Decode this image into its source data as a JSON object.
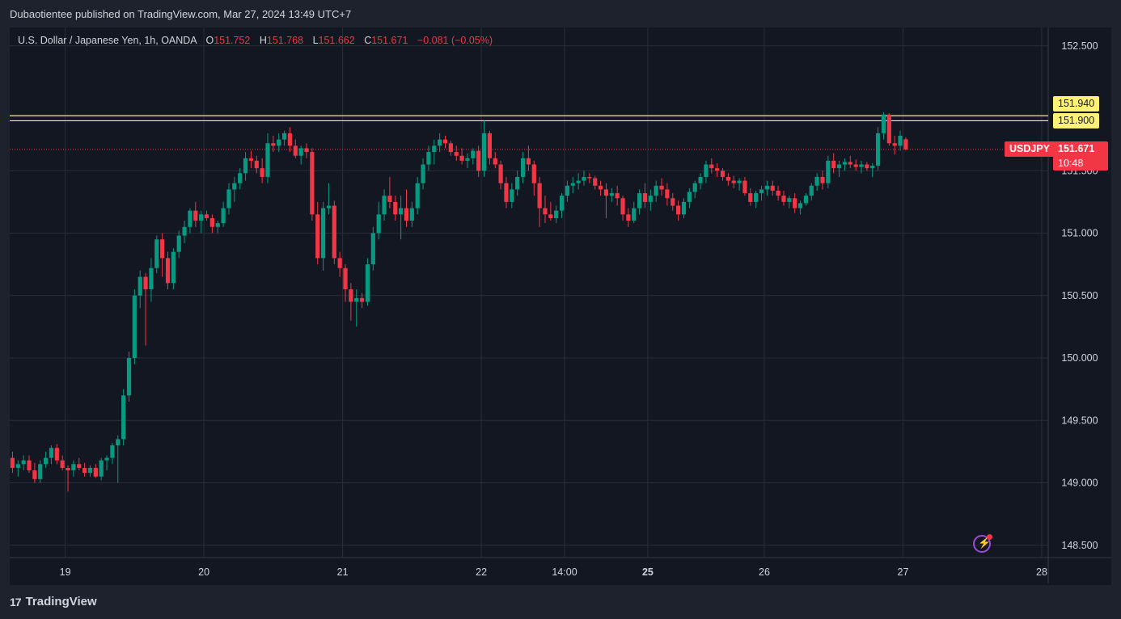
{
  "header": {
    "publisher_line": "Dubaotientee published on TradingView.com, Mar 27, 2024 13:49 UTC+7"
  },
  "legend": {
    "symbol_line": "U.S. Dollar / Japanese Yen, 1h, OANDA",
    "open_label": "O",
    "open": "151.752",
    "high_label": "H",
    "high": "151.768",
    "low_label": "L",
    "low": "151.662",
    "close_label": "C",
    "close": "151.671",
    "change": "−0.081 (−0.05%)"
  },
  "price_tags": {
    "level1": "151.940",
    "level2": "151.900",
    "symbol": "USDJPY",
    "last": "151.671",
    "countdown": "10:48"
  },
  "footer": {
    "brand": "TradingView",
    "brand_mark": "17"
  },
  "colors": {
    "up": "#089981",
    "down": "#f23645",
    "grid": "#2a2e39",
    "level_line": "#fff176",
    "background": "#131722"
  },
  "icons": {
    "flash": "lightning-icon"
  },
  "chart_data": {
    "type": "candlestick",
    "symbol": "USDJPY",
    "timeframe": "1h",
    "y_ticks": [
      "148.500",
      "149.000",
      "149.500",
      "150.000",
      "150.500",
      "151.000",
      "151.500",
      "152.500"
    ],
    "ylim": [
      148.35,
      152.62
    ],
    "x_ticks": [
      {
        "label": "19",
        "bar": 10,
        "bold": false
      },
      {
        "label": "20",
        "bar": 35,
        "bold": false
      },
      {
        "label": "21",
        "bar": 60,
        "bold": false
      },
      {
        "label": "22",
        "bar": 85,
        "bold": false
      },
      {
        "label": "14:00",
        "bar": 100,
        "bold": false
      },
      {
        "label": "25",
        "bar": 115,
        "bold": true
      },
      {
        "label": "26",
        "bar": 136,
        "bold": false
      },
      {
        "label": "27",
        "bar": 161,
        "bold": false
      },
      {
        "label": "28",
        "bar": 186,
        "bold": false
      }
    ],
    "horizontal_levels": [
      151.94,
      151.9
    ],
    "last_price": 151.671,
    "candles": [
      [
        149.2,
        149.25,
        149.08,
        149.12
      ],
      [
        149.12,
        149.18,
        149.05,
        149.15
      ],
      [
        149.15,
        149.22,
        149.1,
        149.18
      ],
      [
        149.18,
        149.22,
        149.08,
        149.1
      ],
      [
        149.1,
        149.16,
        149.0,
        149.03
      ],
      [
        149.03,
        149.18,
        149.0,
        149.15
      ],
      [
        149.15,
        149.25,
        149.12,
        149.2
      ],
      [
        149.2,
        149.3,
        149.15,
        149.28
      ],
      [
        149.28,
        149.31,
        149.15,
        149.18
      ],
      [
        149.18,
        149.22,
        149.1,
        149.12
      ],
      [
        149.12,
        149.14,
        148.93,
        149.1
      ],
      [
        149.1,
        149.18,
        149.05,
        149.15
      ],
      [
        149.15,
        149.2,
        149.1,
        149.12
      ],
      [
        149.12,
        149.16,
        149.05,
        149.08
      ],
      [
        149.08,
        149.14,
        149.05,
        149.12
      ],
      [
        149.12,
        149.15,
        149.04,
        149.05
      ],
      [
        149.05,
        149.2,
        149.02,
        149.18
      ],
      [
        149.18,
        149.22,
        149.1,
        149.2
      ],
      [
        149.2,
        149.32,
        149.15,
        149.3
      ],
      [
        149.3,
        149.38,
        149.0,
        149.35
      ],
      [
        149.35,
        149.75,
        149.3,
        149.7
      ],
      [
        149.7,
        150.05,
        149.65,
        150.0
      ],
      [
        150.0,
        150.55,
        149.95,
        150.5
      ],
      [
        150.5,
        150.7,
        150.4,
        150.65
      ],
      [
        150.65,
        150.68,
        150.1,
        150.55
      ],
      [
        150.55,
        150.8,
        150.45,
        150.72
      ],
      [
        150.72,
        150.98,
        150.68,
        150.95
      ],
      [
        150.95,
        151.0,
        150.65,
        150.8
      ],
      [
        150.8,
        150.85,
        150.55,
        150.6
      ],
      [
        150.6,
        150.88,
        150.55,
        150.85
      ],
      [
        150.85,
        151.02,
        150.8,
        150.98
      ],
      [
        150.98,
        151.1,
        150.92,
        151.05
      ],
      [
        151.05,
        151.2,
        151.0,
        151.18
      ],
      [
        151.18,
        151.25,
        151.05,
        151.1
      ],
      [
        151.1,
        151.18,
        151.0,
        151.15
      ],
      [
        151.15,
        151.18,
        151.1,
        151.12
      ],
      [
        151.12,
        151.15,
        151.0,
        151.05
      ],
      [
        151.05,
        151.1,
        151.0,
        151.08
      ],
      [
        151.08,
        151.25,
        151.05,
        151.2
      ],
      [
        151.2,
        151.4,
        151.15,
        151.35
      ],
      [
        151.35,
        151.45,
        151.25,
        151.4
      ],
      [
        151.4,
        151.52,
        151.35,
        151.48
      ],
      [
        151.48,
        151.65,
        151.42,
        151.6
      ],
      [
        151.6,
        151.66,
        151.52,
        151.58
      ],
      [
        151.58,
        151.62,
        151.48,
        151.52
      ],
      [
        151.52,
        151.6,
        151.4,
        151.45
      ],
      [
        151.45,
        151.8,
        151.4,
        151.72
      ],
      [
        151.72,
        151.78,
        151.65,
        151.7
      ],
      [
        151.7,
        151.8,
        151.65,
        151.75
      ],
      [
        151.75,
        151.82,
        151.7,
        151.8
      ],
      [
        151.8,
        151.85,
        151.65,
        151.7
      ],
      [
        151.7,
        151.75,
        151.6,
        151.62
      ],
      [
        151.62,
        151.7,
        151.55,
        151.68
      ],
      [
        151.68,
        151.72,
        151.6,
        151.65
      ],
      [
        151.65,
        151.68,
        151.1,
        151.15
      ],
      [
        151.15,
        151.25,
        150.75,
        150.8
      ],
      [
        150.8,
        151.25,
        150.7,
        151.2
      ],
      [
        151.2,
        151.4,
        151.15,
        151.22
      ],
      [
        151.22,
        151.26,
        150.75,
        150.8
      ],
      [
        150.8,
        150.85,
        150.65,
        150.72
      ],
      [
        150.72,
        150.75,
        150.45,
        150.55
      ],
      [
        150.55,
        150.6,
        150.3,
        150.45
      ],
      [
        150.45,
        150.55,
        150.25,
        150.48
      ],
      [
        150.48,
        150.52,
        150.4,
        150.45
      ],
      [
        150.45,
        150.8,
        150.42,
        150.75
      ],
      [
        150.75,
        151.05,
        150.7,
        151.0
      ],
      [
        151.0,
        151.25,
        150.95,
        151.15
      ],
      [
        151.15,
        151.35,
        151.1,
        151.3
      ],
      [
        151.3,
        151.45,
        151.2,
        151.25
      ],
      [
        151.25,
        151.3,
        151.1,
        151.15
      ],
      [
        151.15,
        151.3,
        150.95,
        151.2
      ],
      [
        151.2,
        151.35,
        151.05,
        151.1
      ],
      [
        151.1,
        151.25,
        151.05,
        151.2
      ],
      [
        151.2,
        151.45,
        151.15,
        151.4
      ],
      [
        151.4,
        151.6,
        151.35,
        151.55
      ],
      [
        151.55,
        151.7,
        151.5,
        151.65
      ],
      [
        151.65,
        151.75,
        151.55,
        151.7
      ],
      [
        151.7,
        151.8,
        151.65,
        151.75
      ],
      [
        151.75,
        151.78,
        151.68,
        151.72
      ],
      [
        151.72,
        151.74,
        151.62,
        151.65
      ],
      [
        151.65,
        151.7,
        151.58,
        151.62
      ],
      [
        151.62,
        151.68,
        151.55,
        151.58
      ],
      [
        151.58,
        151.64,
        151.52,
        151.6
      ],
      [
        151.6,
        151.68,
        151.55,
        151.66
      ],
      [
        151.66,
        151.7,
        151.45,
        151.5
      ],
      [
        151.5,
        151.9,
        151.45,
        151.8
      ],
      [
        151.8,
        151.82,
        151.55,
        151.6
      ],
      [
        151.6,
        151.65,
        151.52,
        151.55
      ],
      [
        151.55,
        151.58,
        151.35,
        151.4
      ],
      [
        151.4,
        151.45,
        151.2,
        151.25
      ],
      [
        151.25,
        151.4,
        151.2,
        151.35
      ],
      [
        151.35,
        151.5,
        151.3,
        151.45
      ],
      [
        151.45,
        151.65,
        151.4,
        151.6
      ],
      [
        151.6,
        151.7,
        151.5,
        151.55
      ],
      [
        151.55,
        151.58,
        151.3,
        151.4
      ],
      [
        151.4,
        151.45,
        151.05,
        151.2
      ],
      [
        151.2,
        151.3,
        151.08,
        151.15
      ],
      [
        151.15,
        151.25,
        151.1,
        151.12
      ],
      [
        151.12,
        151.22,
        151.08,
        151.18
      ],
      [
        151.18,
        151.32,
        151.12,
        151.3
      ],
      [
        151.3,
        151.42,
        151.25,
        151.38
      ],
      [
        151.38,
        151.45,
        151.32,
        151.4
      ],
      [
        151.4,
        151.48,
        151.35,
        151.42
      ],
      [
        151.42,
        151.5,
        151.38,
        151.45
      ],
      [
        151.45,
        151.48,
        151.4,
        151.44
      ],
      [
        151.44,
        151.46,
        151.35,
        151.38
      ],
      [
        151.38,
        151.42,
        151.3,
        151.35
      ],
      [
        151.35,
        151.4,
        151.12,
        151.3
      ],
      [
        151.3,
        151.36,
        151.25,
        151.32
      ],
      [
        151.32,
        151.38,
        151.22,
        151.28
      ],
      [
        151.28,
        151.3,
        151.1,
        151.15
      ],
      [
        151.15,
        151.2,
        151.05,
        151.1
      ],
      [
        151.1,
        151.25,
        151.08,
        151.2
      ],
      [
        151.2,
        151.35,
        151.15,
        151.32
      ],
      [
        151.32,
        151.4,
        151.2,
        151.25
      ],
      [
        151.25,
        151.35,
        151.18,
        151.3
      ],
      [
        151.3,
        151.42,
        151.25,
        151.38
      ],
      [
        151.38,
        151.44,
        151.3,
        151.35
      ],
      [
        151.35,
        151.4,
        151.22,
        151.28
      ],
      [
        151.28,
        151.32,
        151.18,
        151.22
      ],
      [
        151.22,
        151.26,
        151.1,
        151.15
      ],
      [
        151.15,
        151.28,
        151.12,
        151.25
      ],
      [
        151.25,
        151.36,
        151.2,
        151.33
      ],
      [
        151.33,
        151.42,
        151.28,
        151.4
      ],
      [
        151.4,
        151.48,
        151.35,
        151.45
      ],
      [
        151.45,
        151.58,
        151.4,
        151.55
      ],
      [
        151.55,
        151.6,
        151.48,
        151.52
      ],
      [
        151.52,
        151.56,
        151.45,
        151.5
      ],
      [
        151.5,
        151.52,
        151.42,
        151.45
      ],
      [
        151.45,
        151.48,
        151.38,
        151.42
      ],
      [
        151.42,
        151.46,
        151.36,
        151.4
      ],
      [
        151.4,
        151.44,
        151.34,
        151.42
      ],
      [
        151.42,
        151.45,
        151.3,
        151.32
      ],
      [
        151.32,
        151.36,
        151.22,
        151.25
      ],
      [
        151.25,
        151.34,
        151.2,
        151.32
      ],
      [
        151.32,
        151.38,
        151.26,
        151.35
      ],
      [
        151.35,
        151.42,
        151.3,
        151.38
      ],
      [
        151.38,
        151.42,
        151.3,
        151.34
      ],
      [
        151.34,
        151.38,
        151.26,
        151.3
      ],
      [
        151.3,
        151.34,
        151.22,
        151.25
      ],
      [
        151.25,
        151.3,
        151.2,
        151.28
      ],
      [
        151.28,
        151.32,
        151.16,
        151.2
      ],
      [
        151.2,
        151.26,
        151.15,
        151.24
      ],
      [
        151.24,
        151.32,
        151.22,
        151.3
      ],
      [
        151.3,
        151.4,
        151.26,
        151.38
      ],
      [
        151.38,
        151.48,
        151.34,
        151.45
      ],
      [
        151.45,
        151.5,
        151.35,
        151.4
      ],
      [
        151.4,
        151.62,
        151.36,
        151.58
      ],
      [
        151.58,
        151.64,
        151.48,
        151.52
      ],
      [
        151.52,
        151.58,
        151.45,
        151.55
      ],
      [
        151.55,
        151.6,
        151.5,
        151.57
      ],
      [
        151.57,
        151.62,
        151.52,
        151.55
      ],
      [
        151.55,
        151.59,
        151.5,
        151.53
      ],
      [
        151.53,
        151.58,
        151.48,
        151.55
      ],
      [
        151.55,
        151.57,
        151.5,
        151.52
      ],
      [
        151.52,
        151.56,
        151.45,
        151.54
      ],
      [
        151.54,
        151.85,
        151.5,
        151.8
      ],
      [
        151.8,
        151.97,
        151.75,
        151.95
      ],
      [
        151.95,
        151.96,
        151.7,
        151.72
      ],
      [
        151.72,
        151.78,
        151.63,
        151.7
      ],
      [
        151.7,
        151.82,
        151.66,
        151.78
      ],
      [
        151.752,
        151.768,
        151.662,
        151.671
      ]
    ]
  }
}
